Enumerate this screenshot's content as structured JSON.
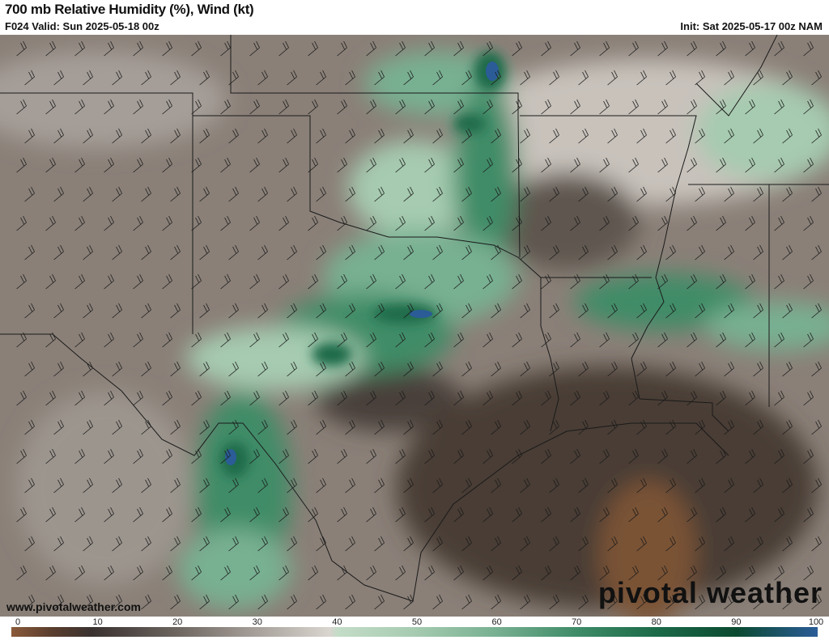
{
  "header": {
    "title": "700 mb Relative Humidity (%), Wind (kt)",
    "valid": "F024 Valid: Sun 2025-05-18 00z",
    "init": "Init: Sat 2025-05-17 00z NAM"
  },
  "footer": {
    "website": "www.pivotalweather.com",
    "logo": "pivotal weather"
  },
  "colorbar": {
    "ticks": [
      "0",
      "10",
      "20",
      "30",
      "40",
      "50",
      "60",
      "70",
      "80",
      "90",
      "100"
    ],
    "colors": {
      "0": "#8a5a3a",
      "10": "#3a3230",
      "20": "#6a625c",
      "30": "#a59e98",
      "40": "#d9d5cf",
      "50": "#a6cbb0",
      "60": "#78b092",
      "70": "#3f8c68",
      "80": "#1c6a48",
      "90": "#0b4a32",
      "100": "#2b5c98"
    }
  },
  "map": {
    "region": "Southern Plains / Texas",
    "background_color": "#8a8078",
    "moist_color": "#2f7f5a"
  }
}
